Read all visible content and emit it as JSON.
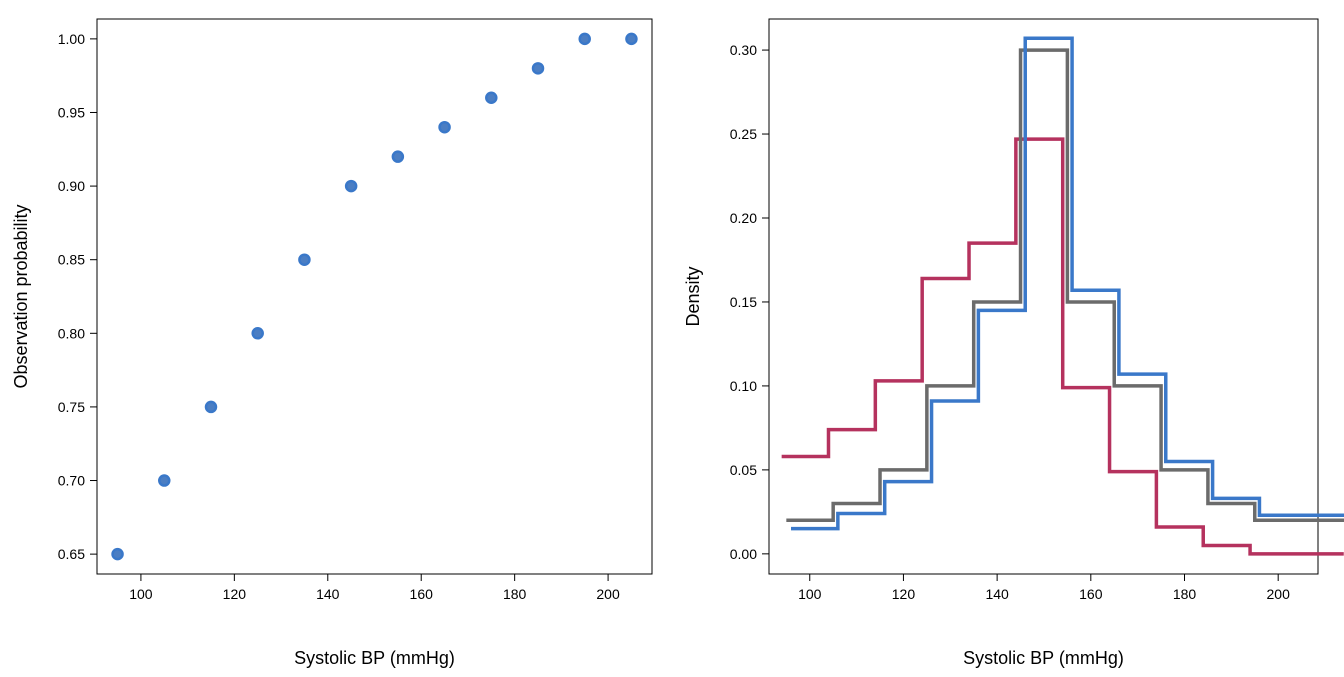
{
  "chart_data": [
    {
      "type": "scatter",
      "xlabel": "Systolic BP (mmHg)",
      "ylabel": "Observation probability",
      "xlim": [
        90.6,
        209.4
      ],
      "ylim": [
        0.6365,
        1.0135
      ],
      "xticks": [
        100,
        120,
        140,
        160,
        180,
        200
      ],
      "yticks": [
        0.65,
        0.7,
        0.75,
        0.8,
        0.85,
        0.9,
        0.95,
        1.0
      ],
      "xtick_labels": [
        "100",
        "120",
        "140",
        "160",
        "180",
        "200"
      ],
      "ytick_labels": [
        "0.65",
        "0.70",
        "0.75",
        "0.80",
        "0.85",
        "0.90",
        "0.95",
        "1.00"
      ],
      "grid": false,
      "marker_color": "#3a78c9",
      "x": [
        95,
        105,
        115,
        125,
        135,
        145,
        155,
        165,
        175,
        185,
        195,
        205
      ],
      "y": [
        0.65,
        0.7,
        0.75,
        0.8,
        0.85,
        0.9,
        0.92,
        0.94,
        0.96,
        0.98,
        1.0,
        1.0
      ]
    },
    {
      "type": "line",
      "step": true,
      "xlabel": "Systolic BP (mmHg)",
      "ylabel": "Density",
      "xlim": [
        91.3,
        208.5
      ],
      "ylim": [
        -0.012,
        0.3185
      ],
      "xticks": [
        100,
        120,
        140,
        160,
        180,
        200
      ],
      "yticks": [
        0.0,
        0.05,
        0.1,
        0.15,
        0.2,
        0.25,
        0.3
      ],
      "xtick_labels": [
        "100",
        "120",
        "140",
        "160",
        "180",
        "200"
      ],
      "ytick_labels": [
        "0.00",
        "0.05",
        "0.10",
        "0.15",
        "0.20",
        "0.25",
        "0.30"
      ],
      "grid": false,
      "series": [
        {
          "color": "#b5325e",
          "x": [
            94,
            104,
            114,
            124,
            134,
            144,
            154,
            164,
            174,
            184,
            194,
            204
          ],
          "y": [
            0.058,
            0.074,
            0.103,
            0.164,
            0.185,
            0.247,
            0.099,
            0.049,
            0.016,
            0.005,
            0.0,
            0.0
          ]
        },
        {
          "color": "#6b6b6b",
          "x": [
            95,
            105,
            115,
            125,
            135,
            145,
            155,
            165,
            175,
            185,
            195,
            205
          ],
          "y": [
            0.02,
            0.03,
            0.05,
            0.1,
            0.15,
            0.3,
            0.15,
            0.1,
            0.05,
            0.03,
            0.02,
            0.02
          ]
        },
        {
          "color": "#3a78c9",
          "x": [
            96,
            106,
            116,
            126,
            136,
            146,
            156,
            166,
            176,
            186,
            196,
            206
          ],
          "y": [
            0.015,
            0.024,
            0.043,
            0.091,
            0.145,
            0.307,
            0.157,
            0.107,
            0.055,
            0.033,
            0.023,
            0.023
          ]
        }
      ]
    }
  ]
}
